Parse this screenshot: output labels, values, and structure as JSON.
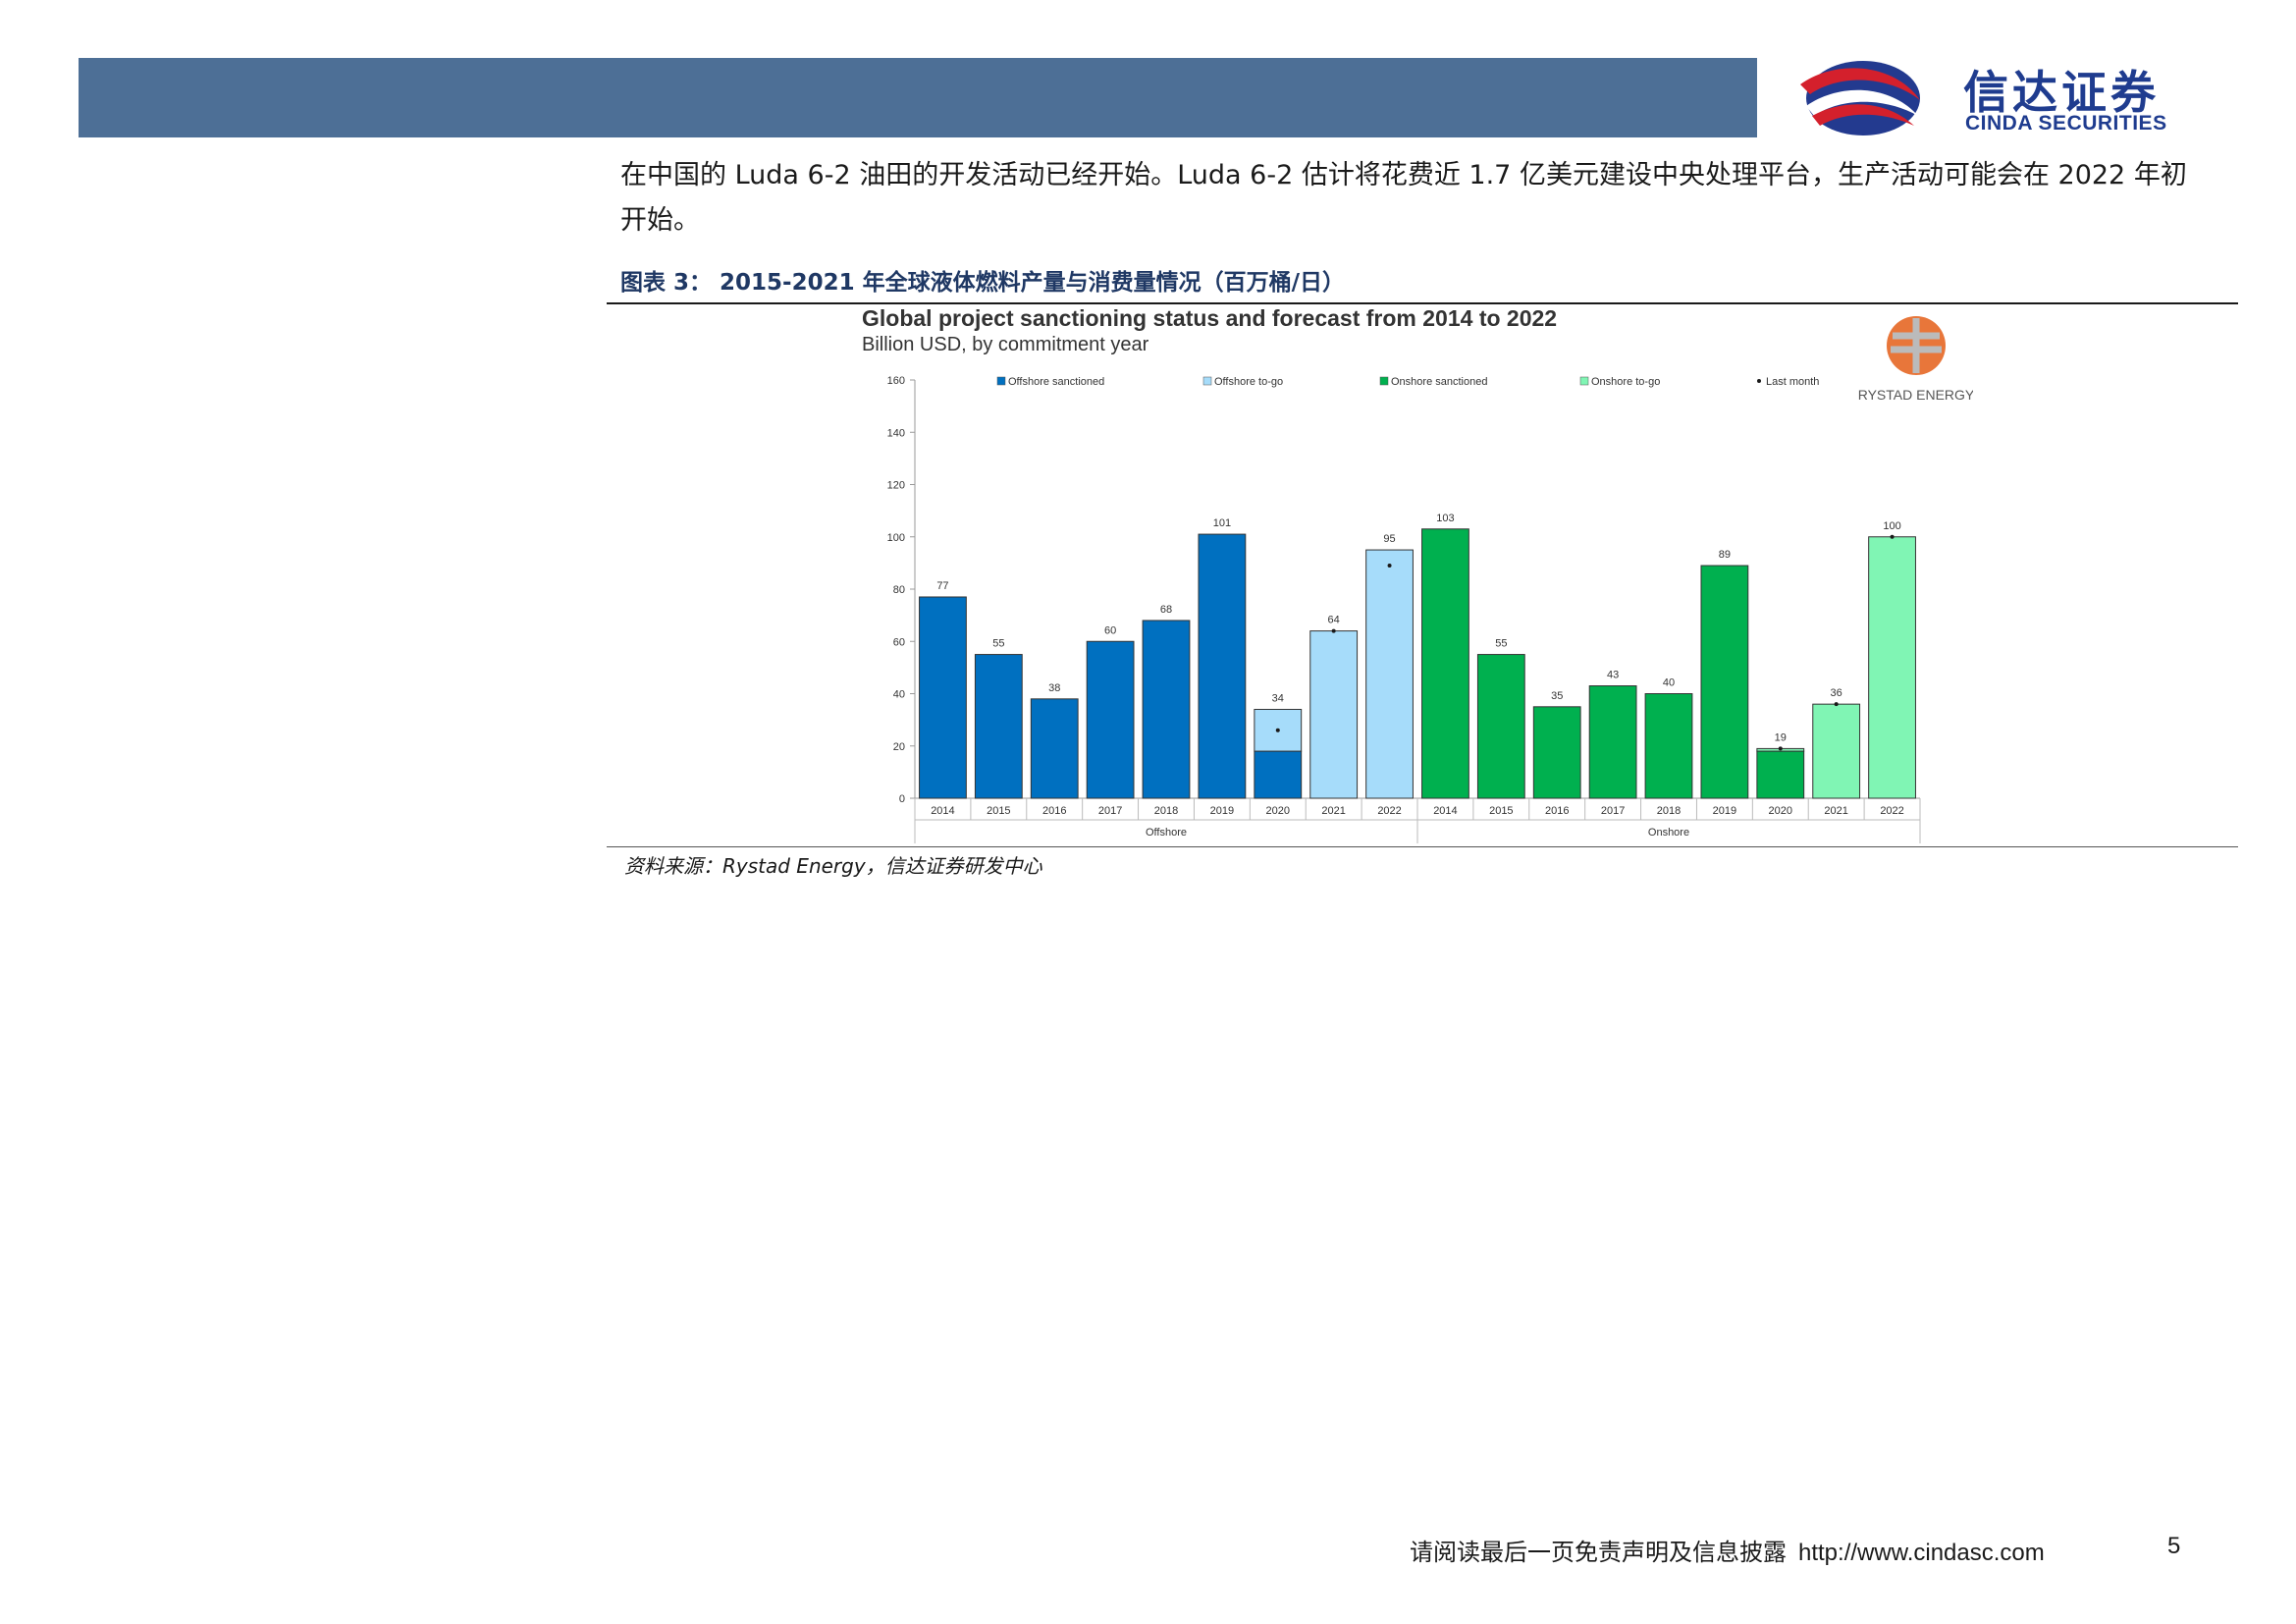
{
  "header": {
    "brand_cn": "信达证券",
    "brand_en": "CINDA SECURITIES",
    "bar_color": "#4d6f96",
    "brand_color": "#1f3c8f"
  },
  "body": {
    "paragraph": "在中国的 Luda 6-2 油田的开发活动已经开始。Luda 6-2 估计将花费近 1.7 亿美元建设中央处理平台，生产活动可能会在 2022 年初开始。"
  },
  "figure": {
    "caption": "图表 3：  2015-2021 年全球液体燃料产量与消费量情况（百万桶/日）",
    "source": "资料来源：Rystad Energy，信达证券研发中心"
  },
  "chart_data": {
    "type": "bar",
    "title": "Global project sanctioning status and forecast from 2014 to 2022",
    "subtitle": "Billion USD, by commitment year",
    "brand": "RYSTAD ENERGY",
    "ylim": [
      0,
      160
    ],
    "yticks": [
      0,
      20,
      40,
      60,
      80,
      100,
      120,
      140,
      160
    ],
    "groups": [
      {
        "name": "Offshore",
        "categories": [
          "2014",
          "2015",
          "2016",
          "2017",
          "2018",
          "2019",
          "2020",
          "2021",
          "2022"
        ]
      },
      {
        "name": "Onshore",
        "categories": [
          "2014",
          "2015",
          "2016",
          "2017",
          "2018",
          "2019",
          "2020",
          "2021",
          "2022"
        ]
      }
    ],
    "legend": [
      {
        "name": "Offshore sanctioned",
        "color": "#0070c0"
      },
      {
        "name": "Offshore to-go",
        "color": "#a6dcfa"
      },
      {
        "name": "Onshore sanctioned",
        "color": "#00b04f"
      },
      {
        "name": "Onshore to-go",
        "color": "#80f5b4"
      },
      {
        "name": "Last month",
        "color": "#1a1a1a"
      }
    ],
    "bars": [
      {
        "group": "Offshore",
        "year": "2014",
        "sanctioned": 77,
        "to_go": 0,
        "total_label": "77",
        "last_month": null
      },
      {
        "group": "Offshore",
        "year": "2015",
        "sanctioned": 55,
        "to_go": 0,
        "total_label": "55",
        "last_month": null
      },
      {
        "group": "Offshore",
        "year": "2016",
        "sanctioned": 38,
        "to_go": 0,
        "total_label": "38",
        "last_month": null
      },
      {
        "group": "Offshore",
        "year": "2017",
        "sanctioned": 60,
        "to_go": 0,
        "total_label": "60",
        "last_month": null
      },
      {
        "group": "Offshore",
        "year": "2018",
        "sanctioned": 68,
        "to_go": 0,
        "total_label": "68",
        "last_month": null
      },
      {
        "group": "Offshore",
        "year": "2019",
        "sanctioned": 101,
        "to_go": 0,
        "total_label": "101",
        "last_month": null
      },
      {
        "group": "Offshore",
        "year": "2020",
        "sanctioned": 18,
        "to_go": 16,
        "total_label": "34",
        "last_month": 26
      },
      {
        "group": "Offshore",
        "year": "2021",
        "sanctioned": 0,
        "to_go": 64,
        "total_label": "64",
        "last_month": 64
      },
      {
        "group": "Offshore",
        "year": "2022",
        "sanctioned": 0,
        "to_go": 95,
        "total_label": "95",
        "last_month": 89
      },
      {
        "group": "Onshore",
        "year": "2014",
        "sanctioned": 103,
        "to_go": 0,
        "total_label": "103",
        "last_month": null
      },
      {
        "group": "Onshore",
        "year": "2015",
        "sanctioned": 55,
        "to_go": 0,
        "total_label": "55",
        "last_month": null
      },
      {
        "group": "Onshore",
        "year": "2016",
        "sanctioned": 35,
        "to_go": 0,
        "total_label": "35",
        "last_month": null
      },
      {
        "group": "Onshore",
        "year": "2017",
        "sanctioned": 43,
        "to_go": 0,
        "total_label": "43",
        "last_month": null
      },
      {
        "group": "Onshore",
        "year": "2018",
        "sanctioned": 40,
        "to_go": 0,
        "total_label": "40",
        "last_month": null
      },
      {
        "group": "Onshore",
        "year": "2019",
        "sanctioned": 89,
        "to_go": 0,
        "total_label": "89",
        "last_month": null
      },
      {
        "group": "Onshore",
        "year": "2020",
        "sanctioned": 18,
        "to_go": 1,
        "total_label": "19",
        "last_month": 19
      },
      {
        "group": "Onshore",
        "year": "2021",
        "sanctioned": 0,
        "to_go": 36,
        "total_label": "36",
        "last_month": 36
      },
      {
        "group": "Onshore",
        "year": "2022",
        "sanctioned": 0,
        "to_go": 100,
        "total_label": "100",
        "last_month": 100
      }
    ]
  },
  "footer": {
    "disclaimer": "请阅读最后一页免责声明及信息披露",
    "url": "http://www.cindasc.com",
    "page": "5"
  }
}
